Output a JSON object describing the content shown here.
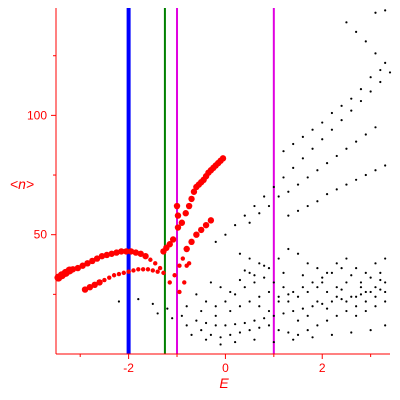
{
  "chart_data": {
    "type": "scatter",
    "title": "",
    "xlabel": "E",
    "ylabel": "<n>",
    "xlim": [
      -3.5,
      3.4
    ],
    "ylim": [
      0,
      145
    ],
    "xticks": [
      -2,
      0,
      2
    ],
    "xtick_labels": [
      "-2",
      "0",
      "2"
    ],
    "yticks": [
      50,
      100
    ],
    "ytick_labels": [
      "50",
      "100"
    ],
    "grid": false,
    "colors": {
      "axes": "#ff0000",
      "red_points": "#ff0000",
      "black_points": "#000000",
      "line_blue": "#0000ff",
      "line_green": "#008000",
      "line_magenta": "#e000e0"
    },
    "vertical_lines": [
      {
        "x": -2.0,
        "color": "#0000ff"
      },
      {
        "x": -1.25,
        "color": "#008000"
      },
      {
        "x": -1.0,
        "color": "#e000e0"
      },
      {
        "x": 1.0,
        "color": "#e000e0"
      }
    ],
    "series": [
      {
        "color": "#ff0000",
        "points": [
          [
            -3.45,
            32
          ],
          [
            -3.38,
            33
          ],
          [
            -3.3,
            34
          ],
          [
            -3.22,
            35
          ],
          [
            -3.15,
            35.5
          ],
          [
            -3.05,
            36
          ],
          [
            -2.95,
            37
          ],
          [
            -2.85,
            38
          ],
          [
            -2.75,
            39
          ],
          [
            -2.65,
            40
          ],
          [
            -2.55,
            41
          ],
          [
            -2.45,
            41.5
          ],
          [
            -2.35,
            42
          ],
          [
            -2.25,
            42.5
          ],
          [
            -2.15,
            43
          ],
          [
            -2.05,
            43
          ],
          [
            -1.95,
            43
          ],
          [
            -1.85,
            42.5
          ],
          [
            -1.75,
            42
          ],
          [
            -1.65,
            41
          ],
          [
            -1.55,
            39.5
          ],
          [
            -1.45,
            38
          ],
          [
            -1.35,
            36
          ],
          [
            -1.28,
            34
          ],
          [
            -2.9,
            27
          ],
          [
            -2.8,
            28
          ],
          [
            -2.7,
            29
          ],
          [
            -2.6,
            30
          ],
          [
            -2.5,
            31
          ],
          [
            -2.4,
            32
          ],
          [
            -2.3,
            33
          ],
          [
            -2.2,
            33.5
          ],
          [
            -2.1,
            34
          ],
          [
            -2.0,
            34.5
          ],
          [
            -1.9,
            35
          ],
          [
            -1.8,
            35.5
          ],
          [
            -1.7,
            35.5
          ],
          [
            -1.6,
            35.5
          ],
          [
            -1.5,
            35
          ],
          [
            -1.4,
            34.5
          ],
          [
            -1.28,
            43
          ],
          [
            -1.22,
            44.5
          ],
          [
            -1.15,
            46
          ],
          [
            -1.08,
            48
          ],
          [
            -0.98,
            53
          ],
          [
            -0.9,
            55
          ],
          [
            -0.82,
            59
          ],
          [
            -0.75,
            62
          ],
          [
            -0.7,
            65
          ],
          [
            -0.65,
            68
          ],
          [
            -0.6,
            70
          ],
          [
            -0.55,
            71
          ],
          [
            -0.5,
            72
          ],
          [
            -0.45,
            73
          ],
          [
            -0.4,
            74.5
          ],
          [
            -0.35,
            76
          ],
          [
            -0.3,
            77
          ],
          [
            -0.25,
            78
          ],
          [
            -0.2,
            79
          ],
          [
            -0.15,
            80
          ],
          [
            -0.1,
            81
          ],
          [
            -0.05,
            82
          ],
          [
            -1.15,
            30
          ],
          [
            -1.05,
            33
          ],
          [
            -0.95,
            37
          ],
          [
            -0.88,
            40
          ],
          [
            -0.8,
            44
          ],
          [
            -0.7,
            47
          ],
          [
            -0.6,
            50
          ],
          [
            -0.5,
            52
          ],
          [
            -0.4,
            54
          ],
          [
            -0.3,
            56
          ],
          [
            -1.0,
            62
          ],
          [
            -0.98,
            58
          ],
          [
            -0.95,
            26
          ],
          [
            -0.85,
            30
          ],
          [
            -0.8,
            37
          ],
          [
            -0.75,
            38
          ]
        ]
      },
      {
        "color": "#000000",
        "points": [
          [
            -0.2,
            47
          ],
          [
            0.0,
            50
          ],
          [
            0.2,
            54
          ],
          [
            0.4,
            58
          ],
          [
            0.6,
            62
          ],
          [
            0.8,
            66
          ],
          [
            1.0,
            70
          ],
          [
            1.2,
            74
          ],
          [
            1.4,
            78
          ],
          [
            1.6,
            82
          ],
          [
            1.8,
            86
          ],
          [
            2.0,
            90
          ],
          [
            2.2,
            94
          ],
          [
            2.4,
            98
          ],
          [
            2.6,
            102
          ],
          [
            2.8,
            106
          ],
          [
            3.0,
            110
          ],
          [
            3.2,
            114
          ],
          [
            3.4,
            118
          ],
          [
            3.3,
            122
          ],
          [
            3.1,
            126
          ],
          [
            2.9,
            131
          ],
          [
            2.7,
            135
          ],
          [
            2.5,
            139
          ],
          [
            3.1,
            143
          ],
          [
            3.3,
            144
          ],
          [
            1.2,
            85
          ],
          [
            1.4,
            88
          ],
          [
            1.6,
            91
          ],
          [
            1.8,
            94
          ],
          [
            2.0,
            97
          ],
          [
            2.2,
            101
          ],
          [
            2.4,
            104
          ],
          [
            2.6,
            107
          ],
          [
            2.8,
            111
          ],
          [
            3.0,
            116
          ],
          [
            3.2,
            119
          ],
          [
            0.5,
            55
          ],
          [
            0.7,
            59
          ],
          [
            0.9,
            62
          ],
          [
            1.1,
            66
          ],
          [
            1.3,
            68
          ],
          [
            1.5,
            71
          ],
          [
            1.7,
            74
          ],
          [
            1.9,
            77
          ],
          [
            2.1,
            80
          ],
          [
            2.3,
            83
          ],
          [
            2.5,
            86
          ],
          [
            2.7,
            89
          ],
          [
            2.9,
            92
          ],
          [
            3.1,
            95
          ],
          [
            1.3,
            58
          ],
          [
            1.5,
            60
          ],
          [
            1.7,
            62
          ],
          [
            1.9,
            64
          ],
          [
            2.1,
            67
          ],
          [
            2.3,
            69
          ],
          [
            2.5,
            71
          ],
          [
            2.7,
            73
          ],
          [
            2.9,
            75
          ],
          [
            3.1,
            77
          ],
          [
            3.3,
            79
          ],
          [
            -2.2,
            22
          ],
          [
            -1.8,
            23
          ],
          [
            -1.5,
            21
          ],
          [
            -1.2,
            19
          ],
          [
            -0.9,
            16
          ],
          [
            -0.6,
            14
          ],
          [
            -0.4,
            13
          ],
          [
            -0.2,
            12
          ],
          [
            0.0,
            12
          ],
          [
            0.2,
            12.5
          ],
          [
            0.4,
            13
          ],
          [
            0.6,
            14
          ],
          [
            0.8,
            15
          ],
          [
            1.0,
            16
          ],
          [
            1.2,
            17
          ],
          [
            1.4,
            18
          ],
          [
            1.6,
            19
          ],
          [
            1.8,
            20
          ],
          [
            2.0,
            21
          ],
          [
            2.2,
            22
          ],
          [
            2.4,
            23
          ],
          [
            2.6,
            24
          ],
          [
            2.8,
            25
          ],
          [
            3.0,
            26
          ],
          [
            3.2,
            27
          ],
          [
            -1.4,
            17
          ],
          [
            -1.1,
            15
          ],
          [
            -0.8,
            12
          ],
          [
            -0.5,
            10
          ],
          [
            -0.3,
            8
          ],
          [
            -0.1,
            7
          ],
          [
            0.1,
            8
          ],
          [
            0.3,
            9
          ],
          [
            0.5,
            10
          ],
          [
            0.7,
            11
          ],
          [
            0.9,
            12
          ],
          [
            1.1,
            10
          ],
          [
            1.3,
            9
          ],
          [
            1.5,
            8
          ],
          [
            1.7,
            10
          ],
          [
            1.9,
            12
          ],
          [
            2.1,
            14
          ],
          [
            2.3,
            16
          ],
          [
            2.5,
            18
          ],
          [
            2.7,
            20
          ],
          [
            2.9,
            22
          ],
          [
            3.1,
            24
          ],
          [
            3.3,
            26
          ],
          [
            -0.6,
            25
          ],
          [
            -0.4,
            22
          ],
          [
            -0.2,
            20
          ],
          [
            0.0,
            22
          ],
          [
            0.2,
            25
          ],
          [
            0.4,
            28
          ],
          [
            0.6,
            30
          ],
          [
            0.8,
            32
          ],
          [
            1.0,
            30
          ],
          [
            1.2,
            28
          ],
          [
            1.4,
            26
          ],
          [
            1.6,
            28
          ],
          [
            1.8,
            30
          ],
          [
            2.0,
            32
          ],
          [
            2.2,
            34
          ],
          [
            2.4,
            36
          ],
          [
            2.6,
            33
          ],
          [
            2.8,
            30
          ],
          [
            3.0,
            32
          ],
          [
            3.2,
            34
          ],
          [
            3.3,
            30
          ],
          [
            -0.8,
            20
          ],
          [
            -0.5,
            18
          ],
          [
            -0.2,
            16
          ],
          [
            0.1,
            18
          ],
          [
            0.3,
            20
          ],
          [
            0.5,
            22
          ],
          [
            0.7,
            24
          ],
          [
            0.9,
            26
          ],
          [
            1.1,
            24
          ],
          [
            1.3,
            22
          ],
          [
            1.5,
            24
          ],
          [
            1.7,
            26
          ],
          [
            1.9,
            28
          ],
          [
            2.1,
            26
          ],
          [
            2.3,
            24
          ],
          [
            2.5,
            22
          ],
          [
            2.7,
            24
          ],
          [
            2.9,
            26
          ],
          [
            3.1,
            28
          ],
          [
            0.3,
            42
          ],
          [
            0.5,
            40
          ],
          [
            0.7,
            38
          ],
          [
            0.9,
            36
          ],
          [
            1.1,
            40
          ],
          [
            1.3,
            44
          ],
          [
            1.5,
            42
          ],
          [
            1.7,
            38
          ],
          [
            1.9,
            36
          ],
          [
            2.1,
            34
          ],
          [
            2.3,
            38
          ],
          [
            2.5,
            40
          ],
          [
            2.7,
            36
          ],
          [
            2.9,
            34
          ],
          [
            3.1,
            38
          ],
          [
            3.3,
            40
          ],
          [
            0.4,
            35
          ],
          [
            0.6,
            33
          ],
          [
            0.8,
            37
          ],
          [
            1.2,
            34
          ],
          [
            1.6,
            33
          ],
          [
            2.0,
            30
          ],
          [
            2.4,
            27
          ],
          [
            2.8,
            28
          ],
          [
            3.2,
            31
          ],
          [
            -0.3,
            30
          ],
          [
            -0.1,
            28
          ],
          [
            0.1,
            26
          ],
          [
            0.3,
            31
          ],
          [
            0.5,
            34
          ],
          [
            0.7,
            20
          ],
          [
            0.9,
            18
          ],
          [
            1.1,
            22
          ],
          [
            1.3,
            25
          ],
          [
            1.5,
            14
          ],
          [
            1.7,
            16
          ],
          [
            1.9,
            22
          ],
          [
            2.1,
            19
          ],
          [
            2.3,
            28
          ],
          [
            2.5,
            30
          ],
          [
            2.7,
            16
          ],
          [
            2.9,
            18
          ],
          [
            3.1,
            20
          ],
          [
            3.3,
            22
          ],
          [
            -0.7,
            8
          ],
          [
            -0.4,
            6
          ],
          [
            -0.1,
            4
          ],
          [
            0.2,
            5
          ],
          [
            0.6,
            6
          ],
          [
            1.0,
            5
          ],
          [
            1.4,
            6
          ],
          [
            1.8,
            7
          ],
          [
            2.2,
            8
          ],
          [
            2.6,
            9
          ],
          [
            3.0,
            10
          ],
          [
            3.3,
            12
          ]
        ]
      }
    ]
  }
}
